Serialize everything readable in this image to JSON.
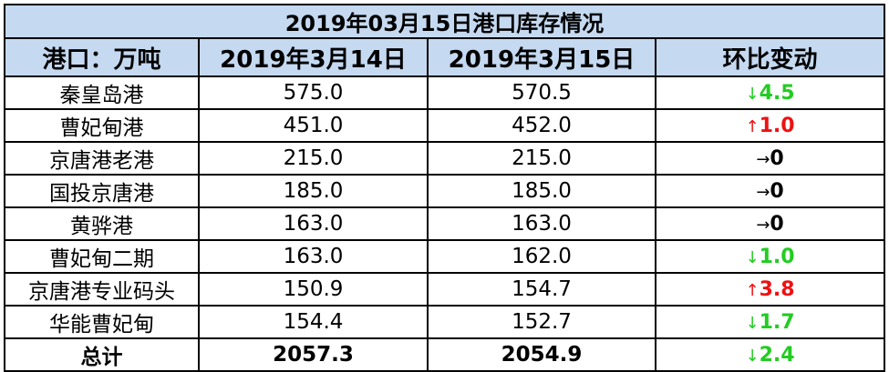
{
  "table": {
    "title": "2019年03月15日港口库存情况",
    "header": [
      "港口：万吨",
      "2019年3月14日",
      "2019年3月15日",
      "环比变动"
    ],
    "rows": [
      {
        "port": "秦皇岛港",
        "prev": "575.0",
        "curr": "570.5",
        "arrow": "↓",
        "change": "4.5",
        "color": "#22cc22"
      },
      {
        "port": "曹妃甸港",
        "prev": "451.0",
        "curr": "452.0",
        "arrow": "↑",
        "change": "1.0",
        "color": "#ee1111"
      },
      {
        "port": "京唐港老港",
        "prev": "215.0",
        "curr": "215.0",
        "arrow": "→",
        "change": "0",
        "color": "#000000"
      },
      {
        "port": "国投京唐港",
        "prev": "185.0",
        "curr": "185.0",
        "arrow": "→",
        "change": "0",
        "color": "#000000"
      },
      {
        "port": "黄骅港",
        "prev": "163.0",
        "curr": "163.0",
        "arrow": "→",
        "change": "0",
        "color": "#000000"
      },
      {
        "port": "曹妃甸二期",
        "prev": "163.0",
        "curr": "162.0",
        "arrow": "↓",
        "change": "1.0",
        "color": "#22cc22"
      },
      {
        "port": "京唐港专业码头",
        "prev": "150.9",
        "curr": "154.7",
        "arrow": "↑",
        "change": "3.8",
        "color": "#ee1111"
      },
      {
        "port": "华能曹妃甸",
        "prev": "154.4",
        "curr": "152.7",
        "arrow": "↓",
        "change": "1.7",
        "color": "#22cc22"
      },
      {
        "port": "总计",
        "prev": "2057.3",
        "curr": "2054.9",
        "arrow": "↓",
        "change": "2.4",
        "color": "#22cc22",
        "bold": true
      }
    ]
  }
}
